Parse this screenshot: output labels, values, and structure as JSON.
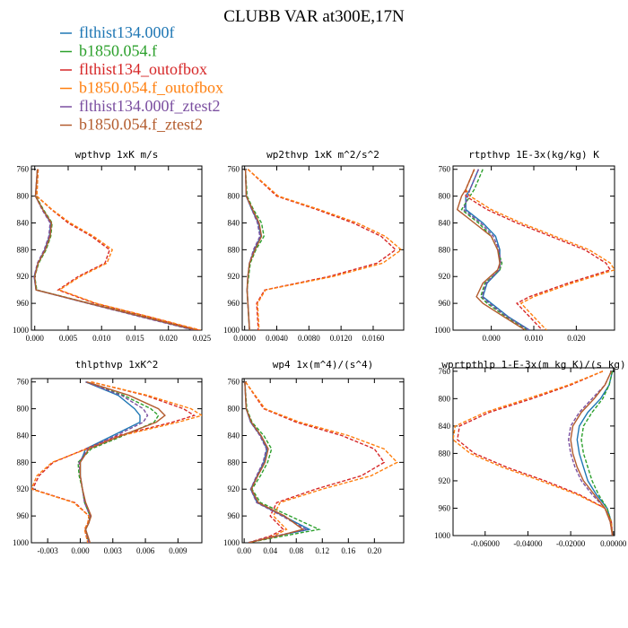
{
  "title": "CLUBB VAR at300E,17N",
  "legend": [
    {
      "label": "flthist134.000f",
      "color": "#1f77b4"
    },
    {
      "label": "b1850.054.f",
      "color": "#2ca02c"
    },
    {
      "label": "flthist134_outofbox",
      "color": "#d62728"
    },
    {
      "label": "b1850.054.f_outofbox",
      "color": "#ff7f0e"
    },
    {
      "label": "flthist134.000f_ztest2",
      "color": "#7b4fa0"
    },
    {
      "label": "b1850.054.f_ztest2",
      "color": "#b35c2e"
    }
  ],
  "chart_data": [
    {
      "type": "line",
      "title": "wpthvp  1xK m/s",
      "xlim": [
        -0.0005,
        0.025
      ],
      "ylim": [
        1000,
        755
      ],
      "xticks": [
        0.0,
        0.005,
        0.01,
        0.015,
        0.02,
        0.025
      ],
      "xtick_labels": [
        "0.000",
        "0.005",
        "0.010",
        "0.015",
        "0.020",
        "0.025"
      ],
      "yticks": [
        760,
        800,
        840,
        880,
        920,
        960,
        1000
      ],
      "ytick_labels": [
        "760",
        "800",
        "840",
        "880",
        "920",
        "960",
        "1000"
      ],
      "y": [
        760,
        800,
        820,
        840,
        860,
        880,
        900,
        920,
        940,
        960,
        980,
        1000
      ],
      "series": [
        {
          "legend_index": 0,
          "dash": false,
          "values": [
            0.0004,
            0.0001,
            0.0012,
            0.0024,
            0.0022,
            0.0015,
            0.0005,
            -0.0001,
            0.0002,
            0.008,
            0.016,
            0.024
          ]
        },
        {
          "legend_index": 1,
          "dash": true,
          "values": [
            0.0004,
            0.0002,
            0.0013,
            0.0026,
            0.0024,
            0.0017,
            0.0006,
            0.0,
            0.0003,
            0.0082,
            0.0165,
            0.0245
          ]
        },
        {
          "legend_index": 2,
          "dash": true,
          "values": [
            0.0005,
            0.0003,
            0.0025,
            0.005,
            0.0085,
            0.0112,
            0.0105,
            0.0065,
            0.0035,
            0.009,
            0.017,
            0.0245
          ]
        },
        {
          "legend_index": 3,
          "dash": true,
          "values": [
            0.0005,
            0.0003,
            0.0026,
            0.0053,
            0.0088,
            0.0116,
            0.0108,
            0.0068,
            0.0037,
            0.0092,
            0.0172,
            0.0248
          ]
        },
        {
          "legend_index": 4,
          "dash": true,
          "values": [
            0.0004,
            0.0001,
            0.0011,
            0.0023,
            0.0021,
            0.0014,
            0.0004,
            -0.0001,
            0.0002,
            0.0079,
            0.0158,
            0.0238
          ]
        },
        {
          "legend_index": 5,
          "dash": false,
          "values": [
            0.0004,
            0.0001,
            0.0012,
            0.0025,
            0.0023,
            0.0016,
            0.0005,
            0.0,
            0.0002,
            0.0081,
            0.0162,
            0.0242
          ]
        }
      ]
    },
    {
      "type": "line",
      "title": "wp2thvp  1xK m^2/s^2",
      "xlim": [
        -0.0003,
        0.0198
      ],
      "ylim": [
        1000,
        755
      ],
      "xticks": [
        0.0,
        0.004,
        0.008,
        0.012,
        0.016
      ],
      "xtick_labels": [
        "0.0000",
        "0.0040",
        "0.0080",
        "0.0120",
        "0.0160"
      ],
      "yticks": [
        760,
        800,
        840,
        880,
        920,
        960,
        1000
      ],
      "ytick_labels": [
        "760",
        "800",
        "840",
        "880",
        "920",
        "960",
        "1000"
      ],
      "y": [
        760,
        800,
        820,
        840,
        860,
        880,
        900,
        920,
        940,
        960,
        980,
        1000
      ],
      "series": [
        {
          "legend_index": 0,
          "dash": false,
          "values": [
            0.0001,
            0.0002,
            0.0009,
            0.0017,
            0.002,
            0.0012,
            0.0006,
            0.0004,
            0.0003,
            0.0004,
            0.0005,
            0.0006
          ]
        },
        {
          "legend_index": 1,
          "dash": true,
          "values": [
            0.0001,
            0.0003,
            0.0011,
            0.0021,
            0.0024,
            0.0014,
            0.0007,
            0.0005,
            0.0003,
            0.0004,
            0.0005,
            0.0006
          ]
        },
        {
          "legend_index": 2,
          "dash": true,
          "values": [
            0.0004,
            0.004,
            0.009,
            0.0135,
            0.017,
            0.0188,
            0.0165,
            0.0105,
            0.0025,
            0.0015,
            0.0016,
            0.0017
          ]
        },
        {
          "legend_index": 3,
          "dash": true,
          "values": [
            0.0004,
            0.0042,
            0.0093,
            0.014,
            0.0175,
            0.0195,
            0.0172,
            0.011,
            0.0026,
            0.0016,
            0.0017,
            0.0018
          ]
        },
        {
          "legend_index": 4,
          "dash": true,
          "values": [
            0.0001,
            0.0002,
            0.0009,
            0.0016,
            0.0019,
            0.0011,
            0.0006,
            0.0004,
            0.0003,
            0.0004,
            0.0005,
            0.0006
          ]
        },
        {
          "legend_index": 5,
          "dash": false,
          "values": [
            0.0001,
            0.0002,
            0.001,
            0.0018,
            0.0021,
            0.0013,
            0.0006,
            0.0004,
            0.0003,
            0.0004,
            0.0005,
            0.0006
          ]
        }
      ]
    },
    {
      "type": "line",
      "title": "rtpthvp  1E-3x(kg/kg) K",
      "xlim": [
        -0.009,
        0.029
      ],
      "ylim": [
        1000,
        755
      ],
      "xticks": [
        0.0,
        0.01,
        0.02
      ],
      "xtick_labels": [
        "0.000",
        "0.010",
        "0.020"
      ],
      "yticks": [
        760,
        800,
        840,
        880,
        920,
        960,
        1000
      ],
      "ytick_labels": [
        "760",
        "800",
        "840",
        "880",
        "920",
        "960",
        "1000"
      ],
      "y": [
        760,
        790,
        800,
        820,
        840,
        860,
        880,
        900,
        910,
        930,
        950,
        960,
        980,
        1000
      ],
      "series": [
        {
          "legend_index": 0,
          "dash": false,
          "values": [
            -0.003,
            -0.005,
            -0.006,
            -0.006,
            -0.002,
            0.001,
            0.002,
            0.002,
            0.002,
            -0.001,
            -0.002,
            0.0,
            0.004,
            0.009
          ]
        },
        {
          "legend_index": 1,
          "dash": true,
          "values": [
            -0.002,
            -0.004,
            -0.005,
            -0.007,
            -0.003,
            0.0,
            0.0015,
            0.0025,
            0.002,
            -0.0015,
            -0.0025,
            -0.001,
            0.0035,
            0.0085
          ]
        },
        {
          "legend_index": 2,
          "dash": true,
          "values": [
            -0.004,
            -0.006,
            -0.006,
            -0.001,
            0.006,
            0.014,
            0.022,
            0.027,
            0.028,
            0.018,
            0.009,
            0.006,
            0.009,
            0.012
          ]
        },
        {
          "legend_index": 3,
          "dash": true,
          "values": [
            -0.004,
            -0.006,
            -0.005,
            0.0,
            0.007,
            0.015,
            0.023,
            0.028,
            0.029,
            0.019,
            0.01,
            0.007,
            0.01,
            0.013
          ]
        },
        {
          "legend_index": 4,
          "dash": true,
          "values": [
            -0.003,
            -0.005,
            -0.0055,
            -0.0065,
            -0.0025,
            0.0005,
            0.0018,
            0.0022,
            0.0018,
            -0.0012,
            -0.0022,
            -0.0005,
            0.0038,
            0.0088
          ]
        },
        {
          "legend_index": 5,
          "dash": false,
          "values": [
            -0.004,
            -0.006,
            -0.007,
            -0.008,
            -0.004,
            0.0,
            0.0015,
            0.002,
            0.0015,
            -0.002,
            -0.0035,
            -0.002,
            0.003,
            0.008
          ]
        }
      ]
    },
    {
      "type": "line",
      "title": "thlpthvp  1xK^2",
      "xlim": [
        -0.0045,
        0.0112
      ],
      "ylim": [
        1000,
        755
      ],
      "xticks": [
        -0.003,
        0.0,
        0.003,
        0.006,
        0.009
      ],
      "xtick_labels": [
        "-0.003",
        "0.000",
        "0.003",
        "0.006",
        "0.009"
      ],
      "yticks": [
        760,
        800,
        840,
        880,
        920,
        960,
        1000
      ],
      "ytick_labels": [
        "760",
        "800",
        "840",
        "880",
        "920",
        "960",
        "1000"
      ],
      "y": [
        760,
        780,
        800,
        810,
        820,
        840,
        860,
        880,
        900,
        920,
        940,
        960,
        970,
        980,
        1000
      ],
      "series": [
        {
          "legend_index": 0,
          "dash": false,
          "values": [
            0.0005,
            0.0035,
            0.005,
            0.0055,
            0.0055,
            0.003,
            0.0005,
            0.0,
            0.0,
            0.0002,
            0.0004,
            0.0009,
            0.0008,
            0.0005,
            0.0008
          ]
        },
        {
          "legend_index": 1,
          "dash": true,
          "values": [
            0.0005,
            0.004,
            0.0065,
            0.0072,
            0.0068,
            0.004,
            0.001,
            -0.0002,
            -0.0001,
            0.0002,
            0.0004,
            0.0009,
            0.0008,
            0.0005,
            0.0008
          ]
        },
        {
          "legend_index": 2,
          "dash": true,
          "values": [
            0.001,
            0.006,
            0.0095,
            0.0105,
            0.0085,
            0.0035,
            0.0005,
            -0.0025,
            -0.0038,
            -0.0044,
            -0.0005,
            0.0008,
            0.0007,
            0.0004,
            0.0007
          ]
        },
        {
          "legend_index": 3,
          "dash": true,
          "values": [
            0.001,
            0.0062,
            0.0102,
            0.0112,
            0.009,
            0.0038,
            0.0006,
            -0.0026,
            -0.004,
            -0.0045,
            -0.0006,
            0.0008,
            0.0007,
            0.0004,
            0.0007
          ]
        },
        {
          "legend_index": 4,
          "dash": true,
          "values": [
            0.0005,
            0.0038,
            0.0058,
            0.0062,
            0.0058,
            0.0033,
            0.0007,
            -0.0001,
            0.0,
            0.0002,
            0.0004,
            0.0009,
            0.0008,
            0.0005,
            0.0008
          ]
        },
        {
          "legend_index": 5,
          "dash": false,
          "values": [
            0.0006,
            0.0045,
            0.0072,
            0.0078,
            0.007,
            0.0038,
            0.0008,
            0.0,
            0.0,
            0.0002,
            0.0005,
            0.001,
            0.0008,
            0.0005,
            0.0009
          ]
        }
      ]
    },
    {
      "type": "line",
      "title": "wp4  1x(m^4)/(s^4)",
      "xlim": [
        -0.003,
        0.245
      ],
      "ylim": [
        1000,
        755
      ],
      "xticks": [
        0.0,
        0.04,
        0.08,
        0.12,
        0.16,
        0.2
      ],
      "xtick_labels": [
        "0.00",
        "0.04",
        "0.08",
        "0.12",
        "0.16",
        "0.20"
      ],
      "yticks": [
        760,
        800,
        840,
        880,
        920,
        960,
        1000
      ],
      "ytick_labels": [
        "760",
        "800",
        "840",
        "880",
        "920",
        "960",
        "1000"
      ],
      "y": [
        760,
        800,
        820,
        840,
        860,
        880,
        900,
        920,
        940,
        960,
        980,
        990,
        1000
      ],
      "series": [
        {
          "legend_index": 0,
          "dash": false,
          "values": [
            0.001,
            0.003,
            0.01,
            0.025,
            0.035,
            0.03,
            0.02,
            0.01,
            0.02,
            0.06,
            0.1,
            0.05,
            0.005
          ]
        },
        {
          "legend_index": 1,
          "dash": true,
          "values": [
            0.001,
            0.004,
            0.012,
            0.03,
            0.042,
            0.036,
            0.025,
            0.012,
            0.025,
            0.07,
            0.115,
            0.06,
            0.006
          ]
        },
        {
          "legend_index": 2,
          "dash": true,
          "values": [
            0.002,
            0.03,
            0.08,
            0.15,
            0.2,
            0.215,
            0.18,
            0.11,
            0.05,
            0.04,
            0.06,
            0.04,
            0.006
          ]
        },
        {
          "legend_index": 3,
          "dash": true,
          "values": [
            0.002,
            0.032,
            0.085,
            0.16,
            0.215,
            0.235,
            0.195,
            0.12,
            0.055,
            0.045,
            0.065,
            0.045,
            0.007
          ]
        },
        {
          "legend_index": 4,
          "dash": true,
          "values": [
            0.001,
            0.003,
            0.01,
            0.024,
            0.034,
            0.029,
            0.019,
            0.01,
            0.019,
            0.058,
            0.095,
            0.048,
            0.005
          ]
        },
        {
          "legend_index": 5,
          "dash": false,
          "values": [
            0.001,
            0.003,
            0.011,
            0.026,
            0.037,
            0.032,
            0.021,
            0.011,
            0.022,
            0.062,
            0.09,
            0.052,
            0.006
          ]
        }
      ]
    },
    {
      "type": "line",
      "title": "wprtpthlp  1-E-3x(m kg K)/(s kg)",
      "xlim": [
        -0.075,
        0.0005
      ],
      "ylim": [
        1000,
        755
      ],
      "xticks": [
        -0.06,
        -0.04,
        -0.02,
        0.0
      ],
      "xtick_labels": [
        "-0.06000",
        "-0.04000",
        "-0.02000",
        "0.00000"
      ],
      "yticks": [
        760,
        800,
        840,
        880,
        920,
        960,
        1000
      ],
      "ytick_labels": [
        "760",
        "800",
        "840",
        "880",
        "920",
        "960",
        "1000"
      ],
      "y": [
        760,
        780,
        800,
        820,
        840,
        860,
        880,
        900,
        920,
        940,
        960,
        980,
        1000
      ],
      "series": [
        {
          "legend_index": 0,
          "dash": false,
          "values": [
            -0.0005,
            -0.002,
            -0.006,
            -0.012,
            -0.016,
            -0.017,
            -0.016,
            -0.014,
            -0.012,
            -0.008,
            -0.003,
            -0.001,
            -0.0005
          ]
        },
        {
          "legend_index": 1,
          "dash": true,
          "values": [
            -0.0005,
            -0.002,
            -0.005,
            -0.01,
            -0.014,
            -0.015,
            -0.014,
            -0.012,
            -0.01,
            -0.007,
            -0.003,
            -0.001,
            -0.0005
          ]
        },
        {
          "legend_index": 2,
          "dash": true,
          "values": [
            -0.005,
            -0.02,
            -0.038,
            -0.058,
            -0.072,
            -0.073,
            -0.065,
            -0.05,
            -0.032,
            -0.016,
            -0.004,
            -0.001,
            -0.0005
          ]
        },
        {
          "legend_index": 3,
          "dash": true,
          "values": [
            -0.005,
            -0.021,
            -0.04,
            -0.06,
            -0.074,
            -0.075,
            -0.067,
            -0.052,
            -0.034,
            -0.017,
            -0.004,
            -0.001,
            -0.0005
          ]
        },
        {
          "legend_index": 4,
          "dash": true,
          "values": [
            -0.001,
            -0.004,
            -0.01,
            -0.016,
            -0.02,
            -0.021,
            -0.02,
            -0.018,
            -0.015,
            -0.01,
            -0.004,
            -0.0015,
            -0.0005
          ]
        },
        {
          "legend_index": 5,
          "dash": false,
          "values": [
            -0.001,
            -0.004,
            -0.009,
            -0.015,
            -0.019,
            -0.02,
            -0.019,
            -0.017,
            -0.014,
            -0.009,
            -0.004,
            -0.0015,
            -0.0005
          ]
        }
      ]
    }
  ]
}
